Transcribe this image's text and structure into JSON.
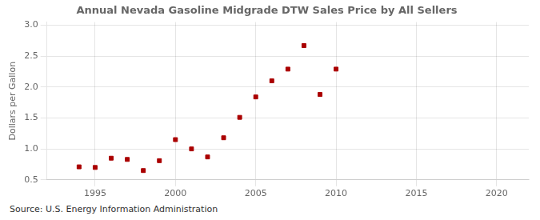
{
  "chart_data": {
    "type": "scatter",
    "title": "Annual Nevada Gasoline Midgrade DTW Sales Price by All Sellers",
    "ylabel": "Dollars per Gallon",
    "annotations": [
      "Source: U.S. Energy Information Administration"
    ],
    "x": [
      1994,
      1995,
      1996,
      1997,
      1998,
      1999,
      2000,
      2001,
      2002,
      2003,
      2004,
      2005,
      2006,
      2007,
      2008,
      2009,
      2010
    ],
    "values": [
      0.71,
      0.7,
      0.85,
      0.83,
      0.65,
      0.81,
      1.15,
      1.0,
      0.87,
      1.18,
      1.51,
      1.84,
      2.1,
      2.29,
      2.67,
      1.88,
      2.29
    ],
    "color": "#aa0000",
    "marker": "square",
    "xlim": [
      1992,
      2022
    ],
    "xticks": [
      1995,
      2000,
      2005,
      2010,
      2015,
      2020
    ],
    "ylim": [
      0.5,
      3.05
    ],
    "yticks": [
      0.5,
      {
        "value": 1.0,
        "label": "1.0"
      },
      1.5,
      {
        "value": 2.0,
        "label": "2.0"
      },
      2.5,
      {
        "value": 3.0,
        "label": "3.0"
      }
    ],
    "grid": true
  }
}
